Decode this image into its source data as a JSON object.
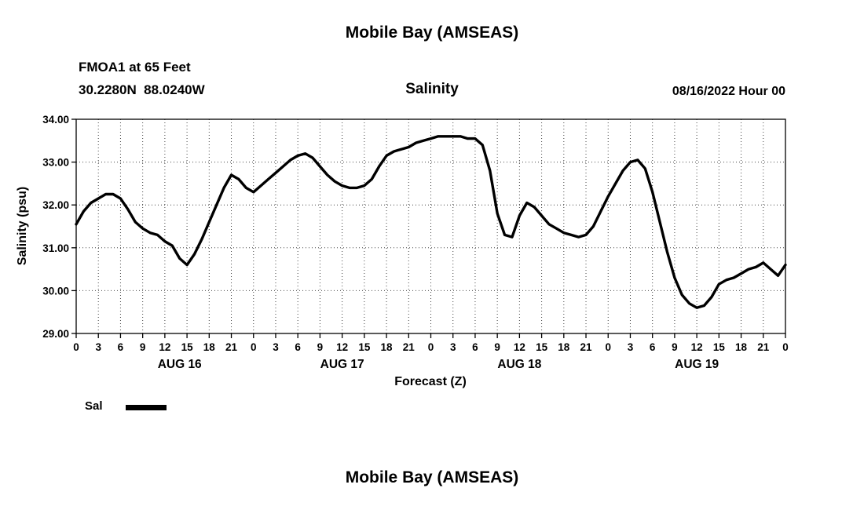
{
  "page": {
    "top_title": "Mobile Bay (AMSEAS)",
    "bottom_title": "Mobile Bay (AMSEAS)"
  },
  "header": {
    "station_line1": "FMOA1 at 65 Feet",
    "station_line2": "30.2280N  88.0240W",
    "chart_title": "Salinity",
    "run_time": "08/16/2022 Hour 00"
  },
  "legend": {
    "label": "Sal",
    "line_color": "#000000"
  },
  "chart_data": {
    "type": "line",
    "title": "Salinity",
    "xlabel": "Forecast (Z)",
    "ylabel": "Salinity (psu)",
    "xlim": [
      0,
      96
    ],
    "ylim": [
      29.0,
      34.0
    ],
    "grid": true,
    "grid_style": "dotted",
    "y_ticks": [
      29,
      30,
      31,
      32,
      33,
      34
    ],
    "y_tick_labels": [
      "29.00",
      "30.00",
      "31.00",
      "32.00",
      "33.00",
      "34.00"
    ],
    "x_tick_interval": 3,
    "x_tick_labels": [
      "0",
      "3",
      "6",
      "9",
      "12",
      "15",
      "18",
      "21",
      "0",
      "3",
      "6",
      "9",
      "12",
      "15",
      "18",
      "21",
      "0",
      "3",
      "6",
      "9",
      "12",
      "15",
      "18",
      "21",
      "0",
      "3",
      "6",
      "9",
      "12",
      "15",
      "18",
      "21",
      "0"
    ],
    "day_labels": [
      {
        "label": "AUG 16",
        "hour": 14
      },
      {
        "label": "AUG 17",
        "hour": 36
      },
      {
        "label": "AUG 18",
        "hour": 60
      },
      {
        "label": "AUG 19",
        "hour": 84
      }
    ],
    "legend_position": "bottom-left",
    "series": [
      {
        "name": "Sal",
        "color": "#000000",
        "x": [
          0,
          1,
          2,
          3,
          4,
          5,
          6,
          7,
          8,
          9,
          10,
          11,
          12,
          13,
          14,
          15,
          16,
          17,
          18,
          19,
          20,
          21,
          22,
          23,
          24,
          25,
          26,
          27,
          28,
          29,
          30,
          31,
          32,
          33,
          34,
          35,
          36,
          37,
          38,
          39,
          40,
          41,
          42,
          43,
          44,
          45,
          46,
          47,
          48,
          49,
          50,
          51,
          52,
          53,
          54,
          55,
          56,
          57,
          58,
          59,
          60,
          61,
          62,
          63,
          64,
          65,
          66,
          67,
          68,
          69,
          70,
          71,
          72,
          73,
          74,
          75,
          76,
          77,
          78,
          79,
          80,
          81,
          82,
          83,
          84,
          85,
          86,
          87,
          88,
          89,
          90,
          91,
          92,
          93,
          94,
          95,
          96
        ],
        "y": [
          31.55,
          31.85,
          32.05,
          32.15,
          32.25,
          32.25,
          32.15,
          31.9,
          31.6,
          31.45,
          31.35,
          31.3,
          31.15,
          31.05,
          30.75,
          30.6,
          30.85,
          31.2,
          31.6,
          32.0,
          32.4,
          32.7,
          32.6,
          32.4,
          32.3,
          32.45,
          32.6,
          32.75,
          32.9,
          33.05,
          33.15,
          33.2,
          33.1,
          32.9,
          32.7,
          32.55,
          32.45,
          32.4,
          32.4,
          32.45,
          32.6,
          32.9,
          33.15,
          33.25,
          33.3,
          33.35,
          33.45,
          33.5,
          33.55,
          33.6,
          33.6,
          33.6,
          33.6,
          33.55,
          33.55,
          33.4,
          32.8,
          31.8,
          31.3,
          31.25,
          31.75,
          32.05,
          31.95,
          31.75,
          31.55,
          31.45,
          31.35,
          31.3,
          31.25,
          31.3,
          31.5,
          31.85,
          32.2,
          32.5,
          32.8,
          33.0,
          33.05,
          32.85,
          32.3,
          31.6,
          30.9,
          30.3,
          29.9,
          29.7,
          29.6,
          29.65,
          29.85,
          30.15,
          30.25,
          30.3,
          30.4,
          30.5,
          30.55,
          30.65,
          30.5,
          30.35,
          30.6
        ]
      }
    ]
  }
}
